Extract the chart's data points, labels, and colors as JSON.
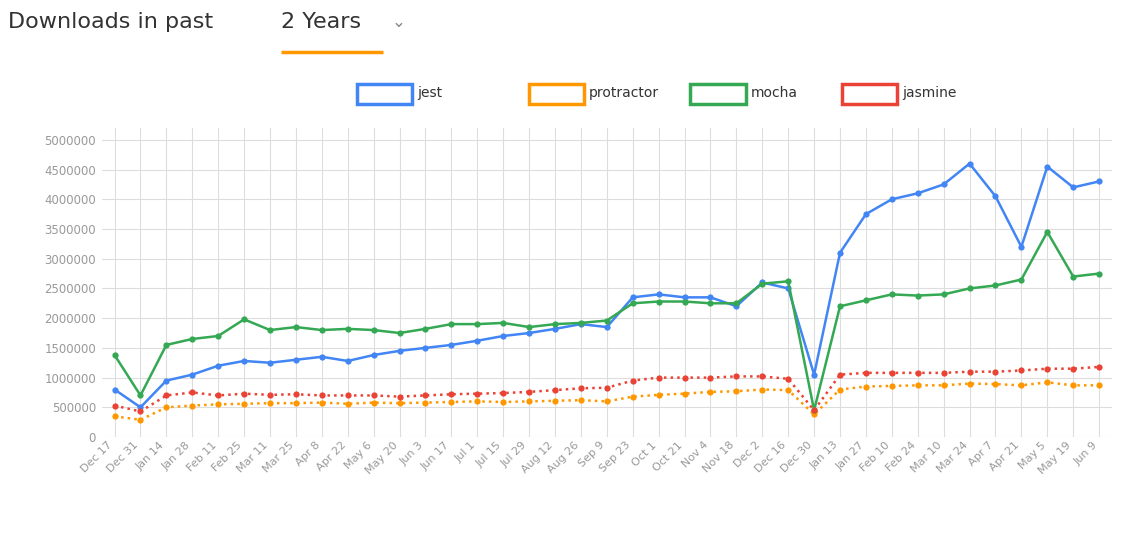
{
  "background_color": "#ffffff",
  "grid_color": "#dddddd",
  "ylabel_color": "#999999",
  "xlabel_color": "#999999",
  "ylim": [
    0,
    5200000
  ],
  "yticks": [
    0,
    500000,
    1000000,
    1500000,
    2000000,
    2500000,
    3000000,
    3500000,
    4000000,
    4500000,
    5000000
  ],
  "x_labels": [
    "Dec 17",
    "Dec 31",
    "Jan 14",
    "Jan 28",
    "Feb 11",
    "Feb 25",
    "Mar 11",
    "Mar 25",
    "Apr 8",
    "Apr 22",
    "May 6",
    "May 20",
    "Jun 3",
    "Jun 17",
    "Jul 1",
    "Jul 15",
    "Jul 29",
    "Aug 12",
    "Aug 26",
    "Sep 9",
    "Sep 23",
    "Oct 1",
    "Oct 21",
    "Nov 4",
    "Nov 18",
    "Dec 2",
    "Dec 16",
    "Dec 30",
    "Jan 13",
    "Jan 27",
    "Feb 10",
    "Feb 24",
    "Mar 10",
    "Mar 24",
    "Apr 7",
    "Apr 21",
    "May 5",
    "May 19",
    "Jun 9"
  ],
  "series_names": [
    "jest",
    "protractor",
    "mocha",
    "jasmine"
  ],
  "colors": {
    "jest": "#4285f4",
    "protractor": "#ff9800",
    "mocha": "#34a853",
    "jasmine": "#ea4335"
  },
  "line_styles": {
    "jest": "-",
    "protractor": ":",
    "mocha": "-",
    "jasmine": ":"
  },
  "jest": [
    800000,
    500000,
    950000,
    1050000,
    1200000,
    1280000,
    1250000,
    1300000,
    1350000,
    1280000,
    1380000,
    1450000,
    1500000,
    1550000,
    1620000,
    1700000,
    1750000,
    1820000,
    1900000,
    1850000,
    2350000,
    2400000,
    2350000,
    2350000,
    2200000,
    2600000,
    2500000,
    1050000,
    3100000,
    3750000,
    4000000,
    4100000,
    4250000,
    4600000,
    4050000,
    3200000,
    4550000,
    4200000,
    4300000
  ],
  "protractor": [
    350000,
    290000,
    500000,
    530000,
    550000,
    560000,
    570000,
    570000,
    580000,
    560000,
    580000,
    570000,
    580000,
    590000,
    600000,
    590000,
    600000,
    610000,
    620000,
    600000,
    680000,
    710000,
    730000,
    760000,
    770000,
    800000,
    790000,
    380000,
    800000,
    850000,
    860000,
    870000,
    870000,
    900000,
    890000,
    870000,
    920000,
    870000,
    870000
  ],
  "mocha": [
    1380000,
    700000,
    1550000,
    1650000,
    1700000,
    1980000,
    1800000,
    1850000,
    1800000,
    1820000,
    1800000,
    1750000,
    1820000,
    1900000,
    1900000,
    1920000,
    1850000,
    1900000,
    1920000,
    1960000,
    2250000,
    2280000,
    2280000,
    2250000,
    2250000,
    2580000,
    2620000,
    450000,
    2200000,
    2300000,
    2400000,
    2380000,
    2400000,
    2500000,
    2550000,
    2650000,
    3450000,
    2700000,
    2750000
  ],
  "jasmine": [
    530000,
    430000,
    700000,
    750000,
    700000,
    730000,
    710000,
    720000,
    700000,
    700000,
    700000,
    680000,
    700000,
    720000,
    730000,
    740000,
    760000,
    790000,
    820000,
    830000,
    950000,
    1000000,
    1000000,
    1000000,
    1020000,
    1020000,
    980000,
    450000,
    1050000,
    1080000,
    1080000,
    1080000,
    1080000,
    1100000,
    1100000,
    1120000,
    1150000,
    1150000,
    1180000
  ]
}
